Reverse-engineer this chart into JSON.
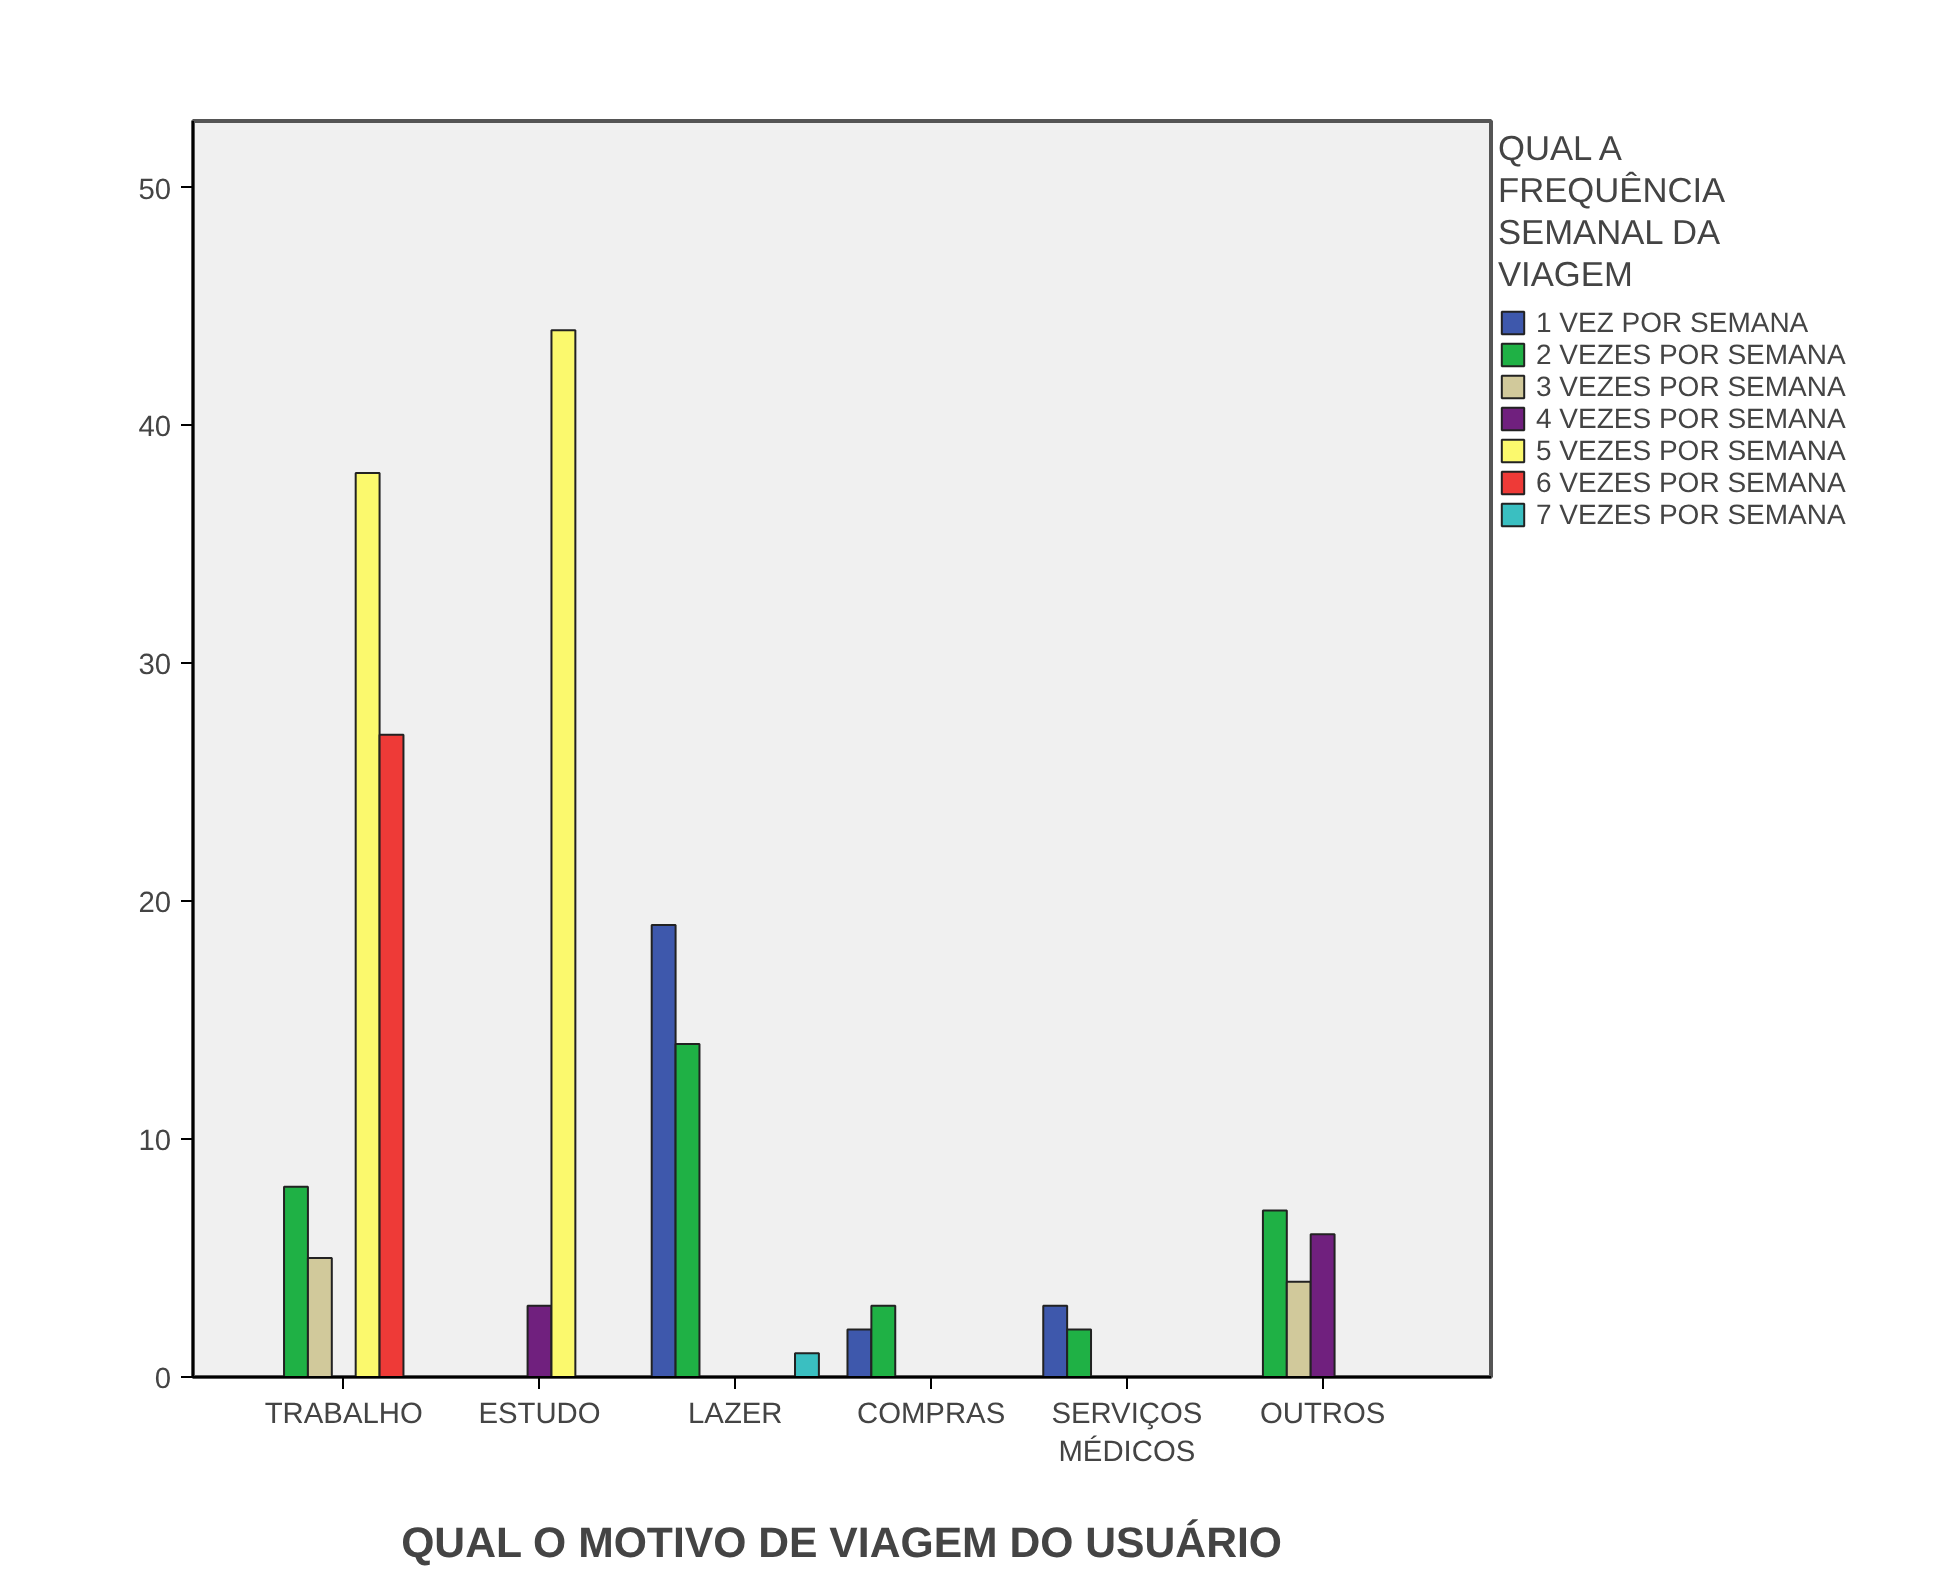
{
  "chart_data": {
    "type": "bar",
    "xlabel": "QUAL O MOTIVO DE VIAGEM DO USUÁRIO",
    "legend_title": "QUAL A FREQUÊNCIA SEMANAL DA VIAGEM",
    "categories": [
      "TRABALHO",
      "ESTUDO",
      "LAZER",
      "COMPRAS",
      "SERVIÇOS MÉDICOS",
      "OUTROS"
    ],
    "series": [
      {
        "name": "1 VEZ POR SEMANA",
        "color": "#3e58ac",
        "values": [
          null,
          null,
          19,
          2,
          3,
          null
        ]
      },
      {
        "name": "2 VEZES POR SEMANA",
        "color": "#1fb145",
        "values": [
          8,
          null,
          14,
          3,
          2,
          7
        ]
      },
      {
        "name": "3 VEZES POR SEMANA",
        "color": "#d1c99b",
        "values": [
          5,
          null,
          null,
          null,
          null,
          4
        ]
      },
      {
        "name": "4 VEZES POR SEMANA",
        "color": "#70207e",
        "values": [
          null,
          3,
          null,
          null,
          null,
          6
        ]
      },
      {
        "name": "5 VEZES POR SEMANA",
        "color": "#fbf96d",
        "values": [
          38,
          44,
          null,
          null,
          null,
          null
        ]
      },
      {
        "name": "6 VEZES POR SEMANA",
        "color": "#ee3a37",
        "values": [
          27,
          null,
          null,
          null,
          null,
          null
        ]
      },
      {
        "name": "7 VEZES POR SEMANA",
        "color": "#3abfc1",
        "values": [
          null,
          null,
          1,
          null,
          null,
          null
        ]
      }
    ],
    "ylim": [
      0,
      52.8
    ],
    "yticks": [
      0,
      10,
      20,
      30,
      40,
      50
    ],
    "grid": false,
    "legend": "right"
  }
}
